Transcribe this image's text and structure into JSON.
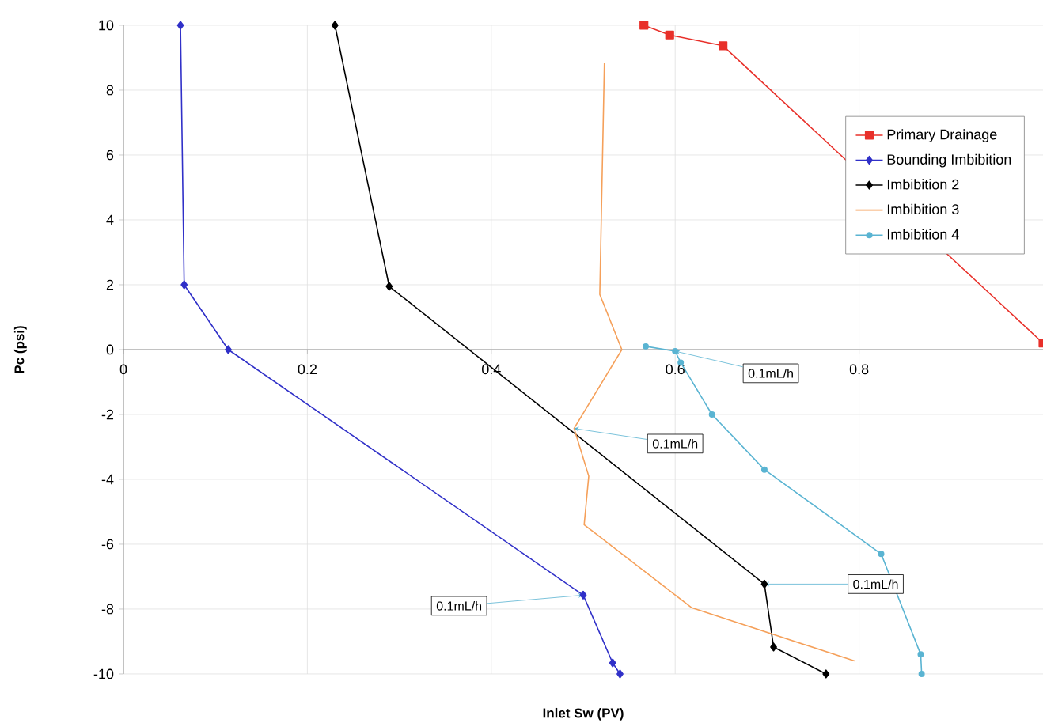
{
  "chart_data": {
    "type": "line",
    "xlabel": "Inlet Sw (PV)",
    "ylabel": "Pc (psi)",
    "xlim": [
      0,
      1
    ],
    "ylim": [
      -10,
      10
    ],
    "xticks": [
      0,
      0.2,
      0.4,
      0.6,
      0.8
    ],
    "yticks": [
      -10,
      -8,
      -6,
      -4,
      -2,
      0,
      2,
      4,
      6,
      8,
      10
    ],
    "grid": true,
    "legend": "right",
    "series": [
      {
        "name": "Primary Drainage",
        "color": "#e8302a",
        "marker": "square",
        "x": [
          0.566,
          0.594,
          0.652,
          1.0
        ],
        "values": [
          10,
          9.7,
          9.37,
          0.2
        ]
      },
      {
        "name": "Bounding Imbibition",
        "color": "#3030c8",
        "marker": "diamond",
        "x": [
          0.062,
          0.066,
          0.114,
          0.5,
          0.532,
          0.54
        ],
        "values": [
          10,
          2.0,
          0,
          -7.57,
          -9.66,
          -10
        ]
      },
      {
        "name": "Imbibition 2",
        "color": "#000000",
        "marker": "diamond",
        "x": [
          0.23,
          0.289,
          0.697,
          0.707,
          0.764
        ],
        "values": [
          10,
          1.95,
          -7.23,
          -9.17,
          -10
        ]
      },
      {
        "name": "Imbibition 3",
        "color": "#f5a05a",
        "marker": "none",
        "x": [
          0.523,
          0.518,
          0.542,
          0.49,
          0.506,
          0.501,
          0.618,
          0.795
        ],
        "values": [
          8.83,
          1.7,
          0,
          -2.43,
          -3.9,
          -5.4,
          -7.96,
          -9.6
        ]
      },
      {
        "name": "Imbibition 4",
        "color": "#5ab4d2",
        "marker": "circle",
        "x": [
          0.568,
          0.6,
          0.606,
          0.64,
          0.697,
          0.824,
          0.867,
          0.868
        ],
        "values": [
          0.1,
          -0.05,
          -0.4,
          -2.0,
          -3.7,
          -6.3,
          -9.4,
          -10
        ]
      }
    ],
    "annotations": [
      {
        "text": "0.1mL/h",
        "x": 0.6,
        "y": -0.05
      },
      {
        "text": "0.1mL/h",
        "x": 0.49,
        "y": -2.43
      },
      {
        "text": "0.1mL/h",
        "x": 0.697,
        "y": -7.23
      },
      {
        "text": "0.1mL/h",
        "x": 0.5,
        "y": -7.57
      }
    ]
  }
}
